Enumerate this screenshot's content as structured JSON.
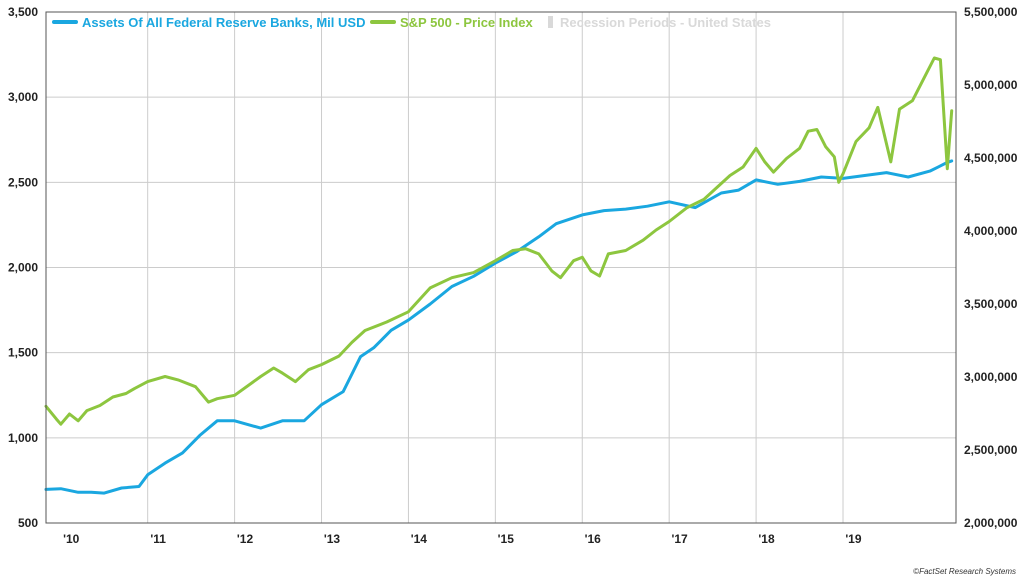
{
  "chart_data": {
    "type": "line",
    "title": "",
    "legend_position": "top-left",
    "grid": true,
    "x_range": [
      2009.83,
      2020.3
    ],
    "x_tick_labels": [
      "'10",
      "'11",
      "'12",
      "'13",
      "'14",
      "'15",
      "'16",
      "'17",
      "'18",
      "'19"
    ],
    "y_left": {
      "range": [
        500,
        3500
      ],
      "ticks": [
        "500",
        "1,000",
        "1,500",
        "2,000",
        "2,500",
        "3,000",
        "3,500"
      ]
    },
    "y_right": {
      "range": [
        2000000,
        5500000
      ],
      "ticks": [
        "2,000,000",
        "2,500,000",
        "3,000,000",
        "3,500,000",
        "4,000,000",
        "4,500,000",
        "5,000,000",
        "5,500,000"
      ]
    },
    "series": [
      {
        "name": "Assets Of All Federal Reserve Banks, Mil USD",
        "axis": "right",
        "color": "#1AA7E0",
        "points": [
          [
            2009.83,
            2230000
          ],
          [
            2010.0,
            2235000
          ],
          [
            2010.2,
            2210000
          ],
          [
            2010.35,
            2210000
          ],
          [
            2010.5,
            2205000
          ],
          [
            2010.7,
            2240000
          ],
          [
            2010.9,
            2250000
          ],
          [
            2011.0,
            2330000
          ],
          [
            2011.2,
            2410000
          ],
          [
            2011.4,
            2480000
          ],
          [
            2011.6,
            2600000
          ],
          [
            2011.8,
            2700000
          ],
          [
            2012.0,
            2700000
          ],
          [
            2012.3,
            2650000
          ],
          [
            2012.55,
            2700000
          ],
          [
            2012.8,
            2700000
          ],
          [
            2013.0,
            2810000
          ],
          [
            2013.25,
            2900000
          ],
          [
            2013.45,
            3140000
          ],
          [
            2013.6,
            3200000
          ],
          [
            2013.8,
            3320000
          ],
          [
            2014.0,
            3390000
          ],
          [
            2014.25,
            3500000
          ],
          [
            2014.5,
            3620000
          ],
          [
            2014.75,
            3690000
          ],
          [
            2015.0,
            3780000
          ],
          [
            2015.25,
            3860000
          ],
          [
            2015.5,
            3960000
          ],
          [
            2015.7,
            4050000
          ],
          [
            2016.0,
            4110000
          ],
          [
            2016.25,
            4140000
          ],
          [
            2016.5,
            4150000
          ],
          [
            2016.75,
            4170000
          ],
          [
            2017.0,
            4200000
          ],
          [
            2017.3,
            4160000
          ],
          [
            2017.6,
            4260000
          ],
          [
            2017.8,
            4280000
          ],
          [
            2018.0,
            4350000
          ],
          [
            2018.25,
            4320000
          ],
          [
            2018.5,
            4340000
          ],
          [
            2018.75,
            4370000
          ],
          [
            2019.0,
            4360000
          ],
          [
            2019.25,
            4380000
          ],
          [
            2019.5,
            4400000
          ],
          [
            2019.75,
            4370000
          ],
          [
            2020.0,
            4410000
          ],
          [
            2020.1,
            4440000
          ],
          [
            2020.2,
            4470000
          ],
          [
            2020.25,
            4480000
          ]
        ]
      },
      {
        "name": "S&P 500 - Price Index",
        "axis": "left",
        "color": "#8DC63F",
        "points": [
          [
            2009.83,
            1185
          ],
          [
            2009.95,
            1110
          ],
          [
            2010.0,
            1080
          ],
          [
            2010.1,
            1140
          ],
          [
            2010.2,
            1100
          ],
          [
            2010.3,
            1160
          ],
          [
            2010.45,
            1190
          ],
          [
            2010.6,
            1240
          ],
          [
            2010.75,
            1260
          ],
          [
            2010.85,
            1290
          ],
          [
            2011.0,
            1330
          ],
          [
            2011.2,
            1360
          ],
          [
            2011.35,
            1340
          ],
          [
            2011.55,
            1300
          ],
          [
            2011.7,
            1210
          ],
          [
            2011.8,
            1230
          ],
          [
            2012.0,
            1250
          ],
          [
            2012.3,
            1360
          ],
          [
            2012.45,
            1410
          ],
          [
            2012.55,
            1380
          ],
          [
            2012.7,
            1330
          ],
          [
            2012.85,
            1400
          ],
          [
            2013.0,
            1430
          ],
          [
            2013.2,
            1480
          ],
          [
            2013.35,
            1560
          ],
          [
            2013.5,
            1630
          ],
          [
            2013.75,
            1680
          ],
          [
            2014.0,
            1740
          ],
          [
            2014.25,
            1880
          ],
          [
            2014.5,
            1940
          ],
          [
            2014.75,
            1970
          ],
          [
            2015.0,
            2040
          ],
          [
            2015.2,
            2100
          ],
          [
            2015.35,
            2110
          ],
          [
            2015.5,
            2080
          ],
          [
            2015.65,
            1980
          ],
          [
            2015.75,
            1940
          ],
          [
            2015.9,
            2040
          ],
          [
            2016.0,
            2060
          ],
          [
            2016.1,
            1980
          ],
          [
            2016.2,
            1950
          ],
          [
            2016.3,
            2080
          ],
          [
            2016.5,
            2100
          ],
          [
            2016.7,
            2160
          ],
          [
            2016.85,
            2220
          ],
          [
            2017.0,
            2270
          ],
          [
            2017.2,
            2350
          ],
          [
            2017.4,
            2400
          ],
          [
            2017.55,
            2470
          ],
          [
            2017.7,
            2540
          ],
          [
            2017.85,
            2590
          ],
          [
            2018.0,
            2700
          ],
          [
            2018.1,
            2620
          ],
          [
            2018.2,
            2560
          ],
          [
            2018.35,
            2640
          ],
          [
            2018.5,
            2700
          ],
          [
            2018.6,
            2800
          ],
          [
            2018.7,
            2810
          ],
          [
            2018.8,
            2710
          ],
          [
            2018.9,
            2650
          ],
          [
            2018.95,
            2500
          ],
          [
            2019.0,
            2550
          ],
          [
            2019.15,
            2740
          ],
          [
            2019.3,
            2820
          ],
          [
            2019.4,
            2940
          ],
          [
            2019.55,
            2620
          ],
          [
            2019.65,
            2930
          ],
          [
            2019.8,
            2980
          ],
          [
            2019.92,
            3100
          ],
          [
            2020.05,
            3230
          ],
          [
            2020.12,
            3220
          ],
          [
            2020.2,
            2580
          ],
          [
            2020.25,
            2920
          ]
        ]
      },
      {
        "name": "Recession Periods - United States",
        "color": "#D9D9D9",
        "periods": []
      }
    ]
  },
  "credit": "©FactSet Research Systems"
}
